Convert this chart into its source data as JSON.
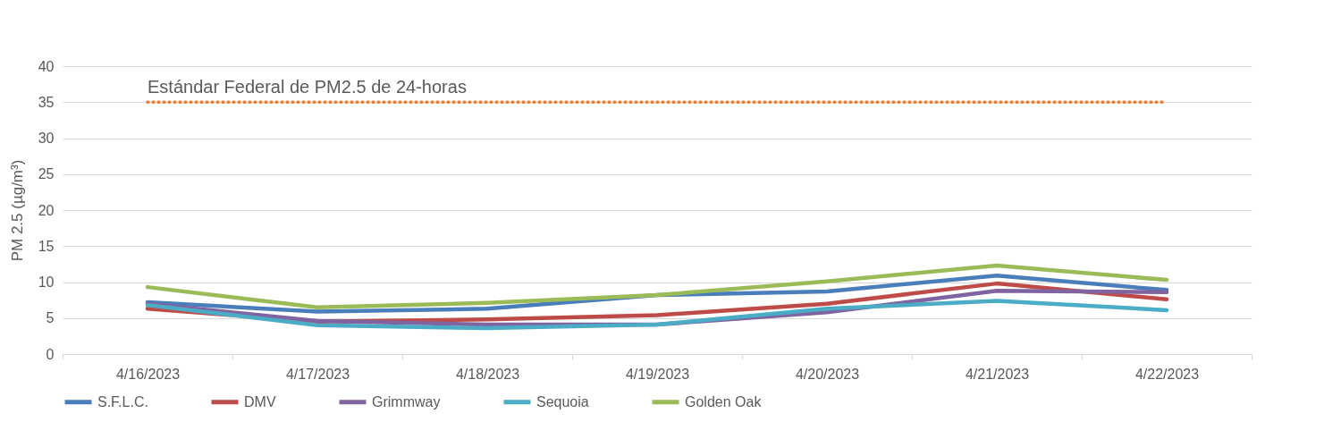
{
  "chart_data": {
    "type": "line",
    "ylabel": "PM 2.5 (µg/m³)",
    "categories": [
      "4/16/2023",
      "4/17/2023",
      "4/18/2023",
      "4/19/2023",
      "4/20/2023",
      "4/21/2023",
      "4/22/2023"
    ],
    "series": [
      {
        "name": "S.F.L.C.",
        "color": "#4a7ebb",
        "values": [
          7.2,
          5.9,
          6.3,
          8.2,
          8.7,
          10.9,
          8.9
        ]
      },
      {
        "name": "DMV",
        "color": "#be4b48",
        "values": [
          6.3,
          4.5,
          4.8,
          5.4,
          7.0,
          9.8,
          7.6
        ]
      },
      {
        "name": "Grimmway",
        "color": "#8064a2",
        "values": [
          7.0,
          4.6,
          4.1,
          4.1,
          5.8,
          8.8,
          8.6
        ]
      },
      {
        "name": "Sequoia",
        "color": "#4bacc6",
        "values": [
          6.8,
          4.0,
          3.6,
          4.1,
          6.3,
          7.4,
          6.1
        ]
      },
      {
        "name": "Golden Oak",
        "color": "#9bbb59",
        "values": [
          9.3,
          6.5,
          7.1,
          8.2,
          10.1,
          12.3,
          10.3
        ]
      }
    ],
    "ylim": [
      0,
      40
    ],
    "yticks": [
      0,
      5,
      10,
      15,
      20,
      25,
      30,
      35,
      40
    ],
    "grid": "y",
    "legend": "bottom",
    "marker": "none",
    "line_style": "solid",
    "ref_lines": [
      {
        "axis": "y",
        "value": 35,
        "label": "Estándar Federal de PM2.5 de 24-horas",
        "color": "#ed7d31",
        "line_style": "dotted"
      }
    ]
  }
}
